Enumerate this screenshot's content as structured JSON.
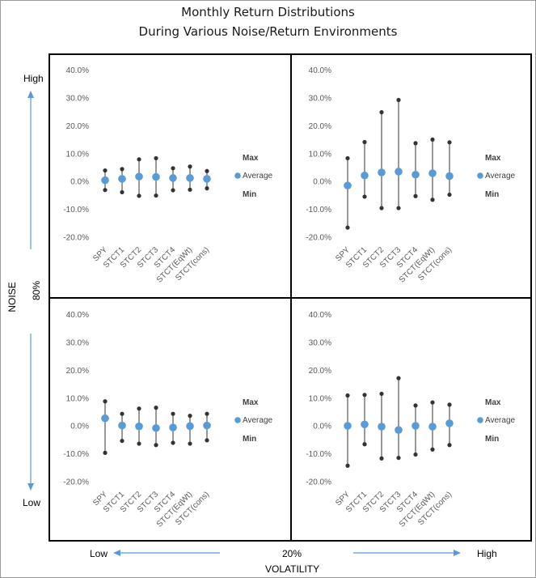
{
  "title_line1": "Monthly Return Distributions",
  "title_line2": "During Various Noise/Return Environments",
  "noise_axis": {
    "label": "NOISE",
    "high": "High",
    "mid": "80%",
    "low": "Low"
  },
  "volatility_axis": {
    "label": "VOLATILITY",
    "low": "Low",
    "mid": "20%",
    "high": "High"
  },
  "colors": {
    "arrow": "#5b9bd5",
    "average": "#5b9bd5",
    "range": "#333333",
    "tick_text": "#595959"
  },
  "chart_data": [
    {
      "type": "scatter",
      "panel": "high-noise-low-volatility",
      "categories": [
        "SPY",
        "STCT1",
        "STCT2",
        "STCT3",
        "STCT4",
        "STCT(EqWt)",
        "STCT(cons)"
      ],
      "yticks": [
        "40.0%",
        "30.0%",
        "20.0%",
        "10.0%",
        "0.0%",
        "-10.0%",
        "-20.0%"
      ],
      "ylim": [
        -20,
        40
      ],
      "legend": [
        "Max",
        "Average",
        "Min"
      ],
      "series": [
        {
          "name": "Max",
          "values": [
            3.8,
            4.3,
            7.8,
            8.2,
            4.6,
            5.2,
            3.6
          ]
        },
        {
          "name": "Average",
          "values": [
            0.3,
            0.8,
            1.6,
            1.5,
            1.1,
            1.1,
            0.8
          ]
        },
        {
          "name": "Min",
          "values": [
            -3.2,
            -4.0,
            -5.3,
            -5.2,
            -3.3,
            -3.1,
            -2.6
          ]
        }
      ]
    },
    {
      "type": "scatter",
      "panel": "high-noise-high-volatility",
      "categories": [
        "SPY",
        "STCT1",
        "STCT2",
        "STCT3",
        "STCT4",
        "STCT(EqWt)",
        "STCT(cons)"
      ],
      "yticks": [
        "40.0%",
        "30.0%",
        "20.0%",
        "10.0%",
        "0.0%",
        "-10.0%",
        "-20.0%"
      ],
      "ylim": [
        -20,
        40
      ],
      "legend": [
        "Max",
        "Average",
        "Min"
      ],
      "series": [
        {
          "name": "Max",
          "values": [
            8.2,
            14.0,
            24.7,
            29.1,
            13.6,
            14.9,
            13.9
          ]
        },
        {
          "name": "Average",
          "values": [
            -1.6,
            2.0,
            3.1,
            3.4,
            2.3,
            2.8,
            1.8
          ]
        },
        {
          "name": "Min",
          "values": [
            -16.7,
            -5.6,
            -9.7,
            -9.7,
            -5.4,
            -6.7,
            -4.9
          ]
        }
      ]
    },
    {
      "type": "scatter",
      "panel": "low-noise-low-volatility",
      "categories": [
        "SPY",
        "STCT1",
        "STCT2",
        "STCT3",
        "STCT4",
        "STCT(EqWt)",
        "STCT(cons)"
      ],
      "yticks": [
        "40.0%",
        "30.0%",
        "20.0%",
        "10.0%",
        "0.0%",
        "-10.0%",
        "-20.0%"
      ],
      "ylim": [
        -20,
        40
      ],
      "legend": [
        "Max",
        "Average",
        "Min"
      ],
      "series": [
        {
          "name": "Max",
          "values": [
            8.7,
            4.2,
            6.1,
            6.4,
            4.2,
            3.5,
            4.2
          ]
        },
        {
          "name": "Average",
          "values": [
            2.6,
            0.0,
            -0.3,
            -0.9,
            -0.7,
            -0.2,
            0.0
          ]
        },
        {
          "name": "Min",
          "values": [
            -9.8,
            -5.5,
            -6.5,
            -7.0,
            -6.2,
            -6.5,
            -5.3
          ]
        }
      ]
    },
    {
      "type": "scatter",
      "panel": "low-noise-high-volatility",
      "categories": [
        "SPY",
        "STCT1",
        "STCT2",
        "STCT3",
        "STCT4",
        "STCT(EqWt)",
        "STCT(cons)"
      ],
      "yticks": [
        "40.0%",
        "30.0%",
        "20.0%",
        "10.0%",
        "0.0%",
        "-10.0%",
        "-20.0%"
      ],
      "ylim": [
        -20,
        40
      ],
      "legend": [
        "Max",
        "Average",
        "Min"
      ],
      "series": [
        {
          "name": "Max",
          "values": [
            10.8,
            11.0,
            11.4,
            17.0,
            7.2,
            8.3,
            7.5
          ]
        },
        {
          "name": "Average",
          "values": [
            -0.1,
            0.4,
            -0.4,
            -1.6,
            -0.1,
            -0.4,
            0.8
          ]
        },
        {
          "name": "Min",
          "values": [
            -14.4,
            -6.7,
            -11.8,
            -11.6,
            -10.4,
            -8.6,
            -7.0
          ]
        }
      ]
    }
  ]
}
